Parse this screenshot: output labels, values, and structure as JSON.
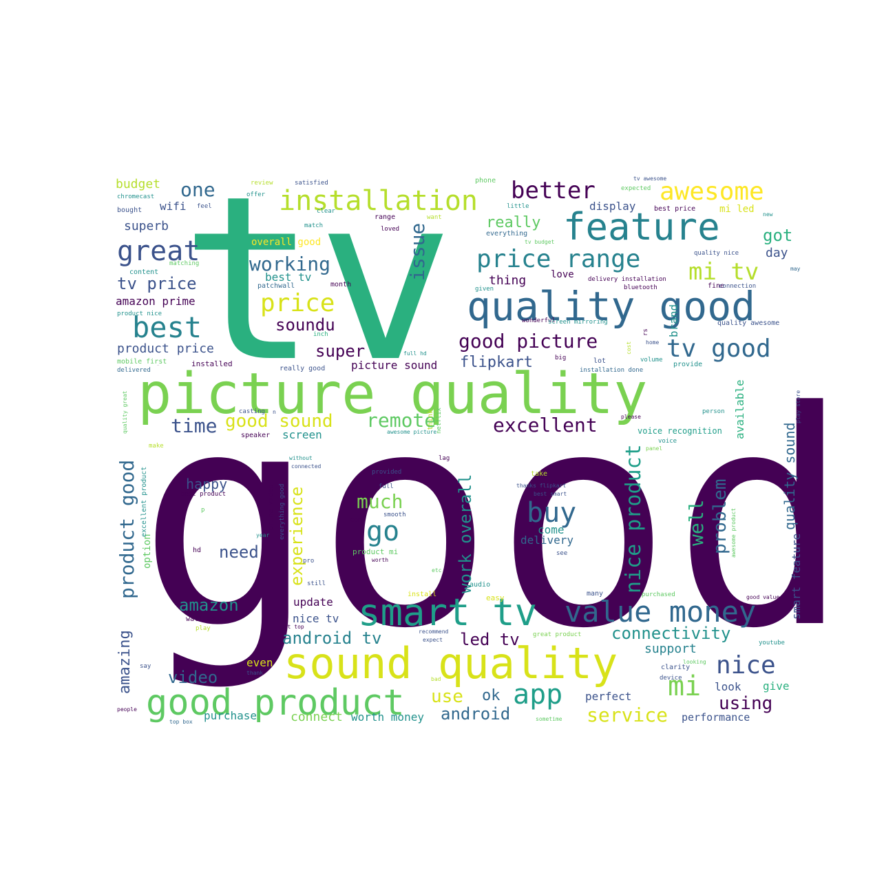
{
  "palette": {
    "dark_purple": "#440154",
    "indigo": "#3b528b",
    "blue": "#31688e",
    "teal_blue": "#26828e",
    "teal": "#21918c",
    "green_teal": "#1f9e89",
    "green": "#2ab07f",
    "light_green": "#5ec962",
    "lime": "#7ad151",
    "yellow_green": "#b5de2b",
    "yellow": "#d8e219",
    "bright_yellow": "#fde725"
  },
  "words": [
    {
      "id": "good",
      "text": "good",
      "color": "#440154"
    },
    {
      "id": "tv",
      "text": "tv",
      "color": "#2ab07f"
    },
    {
      "id": "picture-quality",
      "text": "picture quality",
      "color": "#7ad151"
    },
    {
      "id": "quality-good",
      "text": "quality good",
      "color": "#31688e"
    },
    {
      "id": "sound-quality",
      "text": "sound quality",
      "color": "#d8e219"
    },
    {
      "id": "smart-tv",
      "text": "smart tv",
      "color": "#1f9e89"
    },
    {
      "id": "good-product",
      "text": "good product",
      "color": "#5ec962"
    },
    {
      "id": "value-money",
      "text": "value money",
      "color": "#31688e"
    },
    {
      "id": "feature",
      "text": "feature",
      "color": "#26828e"
    },
    {
      "id": "installation",
      "text": "installation",
      "color": "#b5de2b"
    },
    {
      "id": "price-range",
      "text": "price range",
      "color": "#26828e"
    },
    {
      "id": "tv-good",
      "text": "tv good",
      "color": "#31688e"
    },
    {
      "id": "awesome",
      "text": "awesome",
      "color": "#fde725"
    },
    {
      "id": "better",
      "text": "better",
      "color": "#440154"
    },
    {
      "id": "great",
      "text": "great",
      "color": "#3b528b"
    },
    {
      "id": "best",
      "text": "best",
      "color": "#26828e"
    },
    {
      "id": "price",
      "text": "price",
      "color": "#d8e219"
    },
    {
      "id": "mi-tv",
      "text": "mi tv",
      "color": "#b5de2b"
    },
    {
      "id": "nice",
      "text": "nice",
      "color": "#3b528b"
    },
    {
      "id": "mi",
      "text": "mi",
      "color": "#7ad151"
    },
    {
      "id": "app",
      "text": "app",
      "color": "#1f9e89"
    },
    {
      "id": "buy",
      "text": "buy",
      "color": "#31688e"
    },
    {
      "id": "go",
      "text": "go",
      "color": "#26828e"
    },
    {
      "id": "working",
      "text": "working",
      "color": "#31688e"
    },
    {
      "id": "good-picture",
      "text": "good picture",
      "color": "#440154"
    },
    {
      "id": "remote",
      "text": "remote",
      "color": "#5ec962"
    },
    {
      "id": "excellent",
      "text": "excellent",
      "color": "#440154"
    },
    {
      "id": "good-sound",
      "text": "good sound",
      "color": "#d8e219"
    },
    {
      "id": "time",
      "text": "time",
      "color": "#3b528b"
    },
    {
      "id": "connectivity",
      "text": "connectivity",
      "color": "#21918c"
    },
    {
      "id": "android-tv",
      "text": "android tv",
      "color": "#26828e"
    },
    {
      "id": "led-tv",
      "text": "led tv",
      "color": "#440154"
    },
    {
      "id": "service",
      "text": "service",
      "color": "#d8e219"
    },
    {
      "id": "android",
      "text": "android",
      "color": "#31688e"
    },
    {
      "id": "using",
      "text": "using",
      "color": "#440154"
    },
    {
      "id": "amazon",
      "text": "amazon",
      "color": "#21918c"
    },
    {
      "id": "video",
      "text": "video",
      "color": "#31688e"
    },
    {
      "id": "need",
      "text": "need",
      "color": "#3b528b"
    },
    {
      "id": "happy",
      "text": "happy",
      "color": "#3b528b"
    },
    {
      "id": "much",
      "text": "much",
      "color": "#7ad151"
    },
    {
      "id": "one",
      "text": "one",
      "color": "#31688e"
    },
    {
      "id": "really",
      "text": "really",
      "color": "#5ec962"
    },
    {
      "id": "got",
      "text": "got",
      "color": "#2ab07f"
    },
    {
      "id": "day",
      "text": "day",
      "color": "#3b528b"
    },
    {
      "id": "tv-price",
      "text": "tv price",
      "color": "#3b528b"
    },
    {
      "id": "soundu",
      "text": "soundu",
      "color": "#440154"
    },
    {
      "id": "super",
      "text": "super",
      "color": "#440154"
    },
    {
      "id": "flipkart",
      "text": "flipkart",
      "color": "#3b528b"
    },
    {
      "id": "superb",
      "text": "superb",
      "color": "#3b528b"
    },
    {
      "id": "wifi",
      "text": "wifi",
      "color": "#3b528b"
    },
    {
      "id": "budget",
      "text": "budget",
      "color": "#b5de2b"
    },
    {
      "id": "display",
      "text": "display",
      "color": "#3b528b"
    },
    {
      "id": "use",
      "text": "use",
      "color": "#d8e219"
    },
    {
      "id": "ok",
      "text": "ok",
      "color": "#31688e"
    },
    {
      "id": "support",
      "text": "support",
      "color": "#26828e"
    },
    {
      "id": "update",
      "text": "update",
      "color": "#440154"
    },
    {
      "id": "nice-tv",
      "text": "nice tv",
      "color": "#3b528b"
    },
    {
      "id": "perfect",
      "text": "perfect",
      "color": "#3b528b"
    },
    {
      "id": "give",
      "text": "give",
      "color": "#2ab07f"
    },
    {
      "id": "look",
      "text": "look",
      "color": "#3b528b"
    },
    {
      "id": "connect",
      "text": "connect",
      "color": "#7ad151"
    },
    {
      "id": "worth-money",
      "text": "worth money",
      "color": "#21918c"
    },
    {
      "id": "purchase",
      "text": "purchase",
      "color": "#21918c"
    },
    {
      "id": "performance",
      "text": "performance",
      "color": "#3b528b"
    },
    {
      "id": "even",
      "text": "even",
      "color": "#d8e219"
    },
    {
      "id": "screen",
      "text": "screen",
      "color": "#21918c"
    },
    {
      "id": "picture-sound",
      "text": "picture sound",
      "color": "#440154"
    },
    {
      "id": "product-price",
      "text": "product price",
      "color": "#3b528b"
    },
    {
      "id": "amazon-prime",
      "text": "amazon prime",
      "color": "#440154"
    },
    {
      "id": "thing",
      "text": "thing",
      "color": "#440154"
    },
    {
      "id": "love",
      "text": "love",
      "color": "#440154"
    },
    {
      "id": "best-tv",
      "text": "best tv",
      "color": "#21918c"
    },
    {
      "id": "overall-good",
      "text": "overall good",
      "color": "#fde725"
    },
    {
      "id": "mi-led",
      "text": "mi led",
      "color": "#d8e219"
    },
    {
      "id": "delivery",
      "text": "delivery",
      "color": "#31688e"
    },
    {
      "id": "come",
      "text": "come",
      "color": "#21918c"
    },
    {
      "id": "speaker",
      "text": "speaker",
      "color": "#440154"
    },
    {
      "id": "voice-recognition",
      "text": "voice recognition",
      "color": "#1f9e89"
    },
    {
      "id": "casting",
      "text": "casting",
      "color": "#3b528b"
    },
    {
      "id": "issue",
      "text": "issue",
      "color": "#31688e",
      "rotate": true
    },
    {
      "id": "product-good",
      "text": "product good",
      "color": "#31688e",
      "rotate": true
    },
    {
      "id": "amazing",
      "text": "amazing",
      "color": "#3b528b",
      "rotate": true
    },
    {
      "id": "experience",
      "text": "experience",
      "color": "#d8e219",
      "rotate": true
    },
    {
      "id": "work-overall",
      "text": "work overall",
      "color": "#21918c",
      "rotate": true
    },
    {
      "id": "nice-product",
      "text": "nice product",
      "color": "#1f9e89",
      "rotate": true
    },
    {
      "id": "well",
      "text": "well",
      "color": "#2ab07f",
      "rotate": true
    },
    {
      "id": "problem",
      "text": "problem",
      "color": "#31688e",
      "rotate": true
    },
    {
      "id": "quality-sound",
      "text": "quality sound",
      "color": "#31688e",
      "rotate": true
    },
    {
      "id": "smart-feature",
      "text": "smart feature",
      "color": "#3b528b",
      "rotate": true
    },
    {
      "id": "available",
      "text": "available",
      "color": "#2ab07f",
      "rotate": true
    },
    {
      "id": "brand",
      "text": "brand",
      "color": "#21918c",
      "rotate": true
    },
    {
      "id": "option",
      "text": "option",
      "color": "#5ec962",
      "rotate": true
    },
    {
      "id": "review",
      "text": "review",
      "color": "#b5de2b"
    },
    {
      "id": "satisfied",
      "text": "satisfied",
      "color": "#3b528b"
    },
    {
      "id": "offer",
      "text": "offer",
      "color": "#21918c"
    },
    {
      "id": "phone",
      "text": "phone",
      "color": "#5ec962"
    },
    {
      "id": "tv-awesome",
      "text": "tv awesome",
      "color": "#3b528b"
    },
    {
      "id": "chromecast",
      "text": "chromecast",
      "color": "#21918c"
    },
    {
      "id": "feel",
      "text": "feel",
      "color": "#3b528b"
    },
    {
      "id": "bought",
      "text": "bought",
      "color": "#3b528b"
    },
    {
      "id": "clear",
      "text": "clear",
      "color": "#21918c"
    },
    {
      "id": "want",
      "text": "want",
      "color": "#b5de2b"
    },
    {
      "id": "little",
      "text": "little",
      "color": "#21918c"
    },
    {
      "id": "expected",
      "text": "expected",
      "color": "#5ec962"
    },
    {
      "id": "best-price",
      "text": "best price",
      "color": "#440154"
    },
    {
      "id": "range",
      "text": "range",
      "color": "#440154"
    },
    {
      "id": "match",
      "text": "match",
      "color": "#21918c"
    },
    {
      "id": "loved",
      "text": "loved",
      "color": "#440154"
    },
    {
      "id": "everything",
      "text": "everything",
      "color": "#31688e"
    },
    {
      "id": "tv-budget",
      "text": "tv budget",
      "color": "#5ec962"
    },
    {
      "id": "new",
      "text": "new",
      "color": "#21918c"
    },
    {
      "id": "quality-nice",
      "text": "quality nice",
      "color": "#3b528b"
    },
    {
      "id": "content",
      "text": "content",
      "color": "#21918c"
    },
    {
      "id": "matching",
      "text": "matching",
      "color": "#5ec962"
    },
    {
      "id": "patchwall",
      "text": "patchwall",
      "color": "#31688e"
    },
    {
      "id": "month",
      "text": "month",
      "color": "#440154"
    },
    {
      "id": "given",
      "text": "given",
      "color": "#21918c"
    },
    {
      "id": "delivery-installation",
      "text": "delivery installation",
      "color": "#440154"
    },
    {
      "id": "fine",
      "text": "fine",
      "color": "#440154"
    },
    {
      "id": "connection",
      "text": "connection",
      "color": "#3b528b"
    },
    {
      "id": "bluetooth",
      "text": "bluetooth",
      "color": "#440154"
    },
    {
      "id": "may",
      "text": "may",
      "color": "#31688e"
    },
    {
      "id": "product-nice",
      "text": "product nice",
      "color": "#21918c"
    },
    {
      "id": "wonderful",
      "text": "wonderful",
      "color": "#440154"
    },
    {
      "id": "screen-mirroring",
      "text": "screen mirroring",
      "color": "#21918c"
    },
    {
      "id": "quality-awesome",
      "text": "quality awesome",
      "color": "#3b528b"
    },
    {
      "id": "inch",
      "text": "inch",
      "color": "#2ab07f"
    },
    {
      "id": "home",
      "text": "home",
      "color": "#3b528b"
    },
    {
      "id": "big",
      "text": "big",
      "color": "#440154"
    },
    {
      "id": "lot",
      "text": "lot",
      "color": "#3b528b"
    },
    {
      "id": "volume",
      "text": "volume",
      "color": "#21918c"
    },
    {
      "id": "provide",
      "text": "provide",
      "color": "#21918c"
    },
    {
      "id": "mobile-first",
      "text": "mobile first",
      "color": "#5ec962"
    },
    {
      "id": "installed",
      "text": "installed",
      "color": "#440154"
    },
    {
      "id": "delivered",
      "text": "delivered",
      "color": "#31688e"
    },
    {
      "id": "really-good",
      "text": "really good",
      "color": "#3b528b"
    },
    {
      "id": "full-hd",
      "text": "full hd",
      "color": "#21918c"
    },
    {
      "id": "installation-done",
      "text": "installation done",
      "color": "#31688e"
    },
    {
      "id": "n",
      "text": "n",
      "color": "#3b528b"
    },
    {
      "id": "person",
      "text": "person",
      "color": "#21918c"
    },
    {
      "id": "please",
      "text": "please",
      "color": "#440154"
    },
    {
      "id": "voice",
      "text": "voice",
      "color": "#21918c"
    },
    {
      "id": "panel",
      "text": "panel",
      "color": "#7ad151"
    },
    {
      "id": "awesome-picture",
      "text": "awesome picture",
      "color": "#21918c"
    },
    {
      "id": "make",
      "text": "make",
      "color": "#b5de2b"
    },
    {
      "id": "without",
      "text": "without",
      "color": "#21918c"
    },
    {
      "id": "lag",
      "text": "lag",
      "color": "#440154"
    },
    {
      "id": "connected",
      "text": "connected",
      "color": "#3b528b"
    },
    {
      "id": "provided",
      "text": "provided",
      "color": "#3b528b"
    },
    {
      "id": "full",
      "text": "full",
      "color": "#3b528b"
    },
    {
      "id": "take",
      "text": "take",
      "color": "#b5de2b"
    },
    {
      "id": "thanks-flipkart",
      "text": "thanks flipkart",
      "color": "#3b528b"
    },
    {
      "id": "best-smart",
      "text": "best smart",
      "color": "#3b528b"
    },
    {
      "id": "best-product",
      "text": "best product",
      "color": "#440154"
    },
    {
      "id": "p",
      "text": "p",
      "color": "#5ec962"
    },
    {
      "id": "smooth",
      "text": "smooth",
      "color": "#3b528b"
    },
    {
      "id": "con",
      "text": "con",
      "color": "#440154"
    },
    {
      "id": "year",
      "text": "year",
      "color": "#21918c"
    },
    {
      "id": "see",
      "text": "see",
      "color": "#3b528b"
    },
    {
      "id": "hd",
      "text": "hd",
      "color": "#440154"
    },
    {
      "id": "pro",
      "text": "pro",
      "color": "#3b528b"
    },
    {
      "id": "product-mi",
      "text": "product mi",
      "color": "#5ec962"
    },
    {
      "id": "worth",
      "text": "worth",
      "color": "#440154"
    },
    {
      "id": "still",
      "text": "still",
      "color": "#3b528b"
    },
    {
      "id": "etc",
      "text": "etc",
      "color": "#5ec962"
    },
    {
      "id": "audio",
      "text": "audio",
      "color": "#21918c"
    },
    {
      "id": "install",
      "text": "install",
      "color": "#d8e219"
    },
    {
      "id": "easy",
      "text": "easy",
      "color": "#d8e219"
    },
    {
      "id": "many",
      "text": "many",
      "color": "#3b528b"
    },
    {
      "id": "purchased",
      "text": "purchased",
      "color": "#5ec962"
    },
    {
      "id": "good-value",
      "text": "good value",
      "color": "#440154"
    },
    {
      "id": "wall-mount",
      "text": "wall mount",
      "color": "#440154"
    },
    {
      "id": "play",
      "text": "play",
      "color": "#b5de2b"
    },
    {
      "id": "set-top",
      "text": "set top",
      "color": "#440154"
    },
    {
      "id": "recommend",
      "text": "recommend",
      "color": "#3b528b"
    },
    {
      "id": "expect",
      "text": "expect",
      "color": "#3b528b"
    },
    {
      "id": "great-product",
      "text": "great product",
      "color": "#7ad151"
    },
    {
      "id": "youtube",
      "text": "youtube",
      "color": "#21918c"
    },
    {
      "id": "clarity",
      "text": "clarity",
      "color": "#3b528b"
    },
    {
      "id": "looking",
      "text": "looking",
      "color": "#5ec962"
    },
    {
      "id": "device",
      "text": "device",
      "color": "#3b528b"
    },
    {
      "id": "say",
      "text": "say",
      "color": "#3b528b"
    },
    {
      "id": "thank",
      "text": "thank",
      "color": "#3b528b"
    },
    {
      "id": "bad",
      "text": "bad",
      "color": "#b5de2b"
    },
    {
      "id": "people",
      "text": "people",
      "color": "#440154"
    },
    {
      "id": "top-box",
      "text": "top box",
      "color": "#31688e"
    },
    {
      "id": "sometime",
      "text": "sometime",
      "color": "#5ec962"
    },
    {
      "id": "first",
      "text": "first",
      "color": "#440154"
    },
    {
      "id": "quality-great",
      "text": "quality great",
      "color": "#5ec962",
      "rotate": true
    },
    {
      "id": "excellent-product",
      "text": "excellent product",
      "color": "#21918c",
      "rotate": true
    },
    {
      "id": "prime-video",
      "text": "prime video",
      "color": "#440154",
      "rotate": true
    },
    {
      "id": "everything-good",
      "text": "everything good",
      "color": "#3b528b",
      "rotate": true
    },
    {
      "id": "think",
      "text": "think",
      "color": "#b5de2b",
      "rotate": true
    },
    {
      "id": "netflix",
      "text": "netflix",
      "color": "#5ec962",
      "rotate": true
    },
    {
      "id": "awesome-product",
      "text": "awesome product",
      "color": "#5ec962",
      "rotate": true
    },
    {
      "id": "play-store",
      "text": "play store",
      "color": "#3b528b",
      "rotate": true
    },
    {
      "id": "cost",
      "text": "cost",
      "color": "#b5de2b",
      "rotate": true
    },
    {
      "id": "rs",
      "text": "rs",
      "color": "#440154",
      "rotate": true
    }
  ]
}
